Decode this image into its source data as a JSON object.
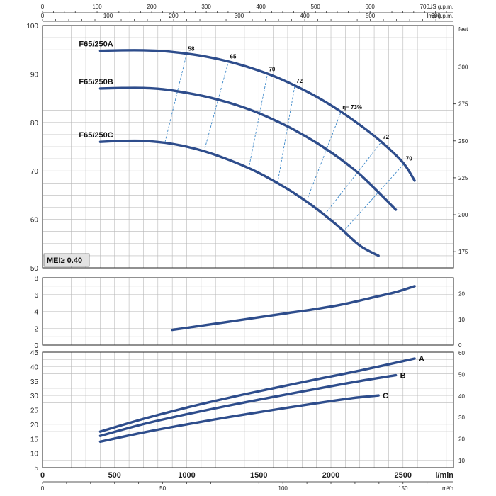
{
  "chart_data": [
    {
      "panel": "head",
      "type": "line",
      "x_units": {
        "bottom_main": "l/min",
        "bottom_secondary": "m³/h",
        "top_1": "US g.p.m.",
        "top_2": "Imp g.p.m."
      },
      "y_units": {
        "right": "feet"
      },
      "xlim": [
        0,
        2850
      ],
      "ylim": [
        50,
        100
      ],
      "y_ticks": [
        50,
        60,
        70,
        80,
        90,
        100
      ],
      "y2_ticks": [
        175,
        200,
        225,
        250,
        275,
        300
      ],
      "series": [
        {
          "name": "F65/250A",
          "x": [
            400,
            550,
            700,
            850,
            1000,
            1150,
            1300,
            1450,
            1600,
            1750,
            1900,
            2050,
            2200,
            2350,
            2500,
            2580
          ],
          "y": [
            94.8,
            94.9,
            94.9,
            94.7,
            94.2,
            93.5,
            92.5,
            91.2,
            89.6,
            87.6,
            85.3,
            82.6,
            79.5,
            76.0,
            71.7,
            68.0
          ]
        },
        {
          "name": "F65/250B",
          "x": [
            400,
            550,
            700,
            850,
            1000,
            1150,
            1300,
            1450,
            1600,
            1750,
            1900,
            2050,
            2200,
            2350,
            2450
          ],
          "y": [
            87.0,
            87.1,
            87.1,
            86.8,
            86.1,
            85.2,
            84.0,
            82.5,
            80.6,
            78.4,
            75.8,
            72.8,
            69.3,
            65.0,
            62.0
          ]
        },
        {
          "name": "F65/250C",
          "x": [
            400,
            550,
            700,
            850,
            1000,
            1150,
            1300,
            1450,
            1600,
            1750,
            1900,
            2050,
            2200,
            2330
          ],
          "y": [
            76.0,
            76.2,
            76.2,
            75.8,
            75.0,
            73.8,
            72.2,
            70.3,
            68.0,
            65.3,
            62.2,
            58.6,
            54.6,
            52.5
          ]
        }
      ],
      "efficiency_lines": [
        {
          "label": "58",
          "x": [
            850,
            1000
          ],
          "y": [
            76.0,
            94.2
          ]
        },
        {
          "label": "65",
          "x": [
            1120,
            1290
          ],
          "y": [
            74.0,
            92.6
          ]
        },
        {
          "label": "70",
          "x": [
            1430,
            1560
          ],
          "y": [
            70.5,
            90.0
          ]
        },
        {
          "label": "72",
          "x": [
            1630,
            1750
          ],
          "y": [
            67.5,
            87.6
          ]
        },
        {
          "label": "η= 73%",
          "x": [
            1840,
            2070
          ],
          "y": [
            64.5,
            82.2
          ]
        },
        {
          "label": "72",
          "x": [
            1970,
            2350
          ],
          "y": [
            61.5,
            76.0
          ]
        },
        {
          "label": "70",
          "x": [
            2100,
            2510
          ],
          "y": [
            58.0,
            71.6
          ]
        }
      ],
      "annotation": "MEI≥ 0.40"
    },
    {
      "panel": "npsh",
      "type": "line",
      "xlim": [
        0,
        2850
      ],
      "ylim": [
        0,
        8
      ],
      "y_ticks": [
        0,
        2,
        4,
        6,
        8
      ],
      "y2_ticks": [
        0,
        10,
        20
      ],
      "series": [
        {
          "name": "",
          "x": [
            900,
            1100,
            1300,
            1500,
            1700,
            1900,
            2100,
            2300,
            2450,
            2580
          ],
          "y": [
            1.8,
            2.3,
            2.8,
            3.3,
            3.8,
            4.3,
            4.9,
            5.7,
            6.3,
            7.0
          ]
        }
      ]
    },
    {
      "panel": "power",
      "type": "line",
      "xlim": [
        0,
        2850
      ],
      "ylim": [
        5,
        45
      ],
      "y_ticks": [
        5,
        10,
        15,
        20,
        25,
        30,
        35,
        40,
        45
      ],
      "y2_ticks": [
        10,
        20,
        30,
        40,
        50,
        60
      ],
      "series": [
        {
          "name": "A",
          "x": [
            400,
            700,
            1000,
            1300,
            1600,
            1900,
            2200,
            2580
          ],
          "y": [
            17.5,
            21.9,
            25.8,
            29.3,
            32.5,
            35.6,
            38.6,
            42.8
          ]
        },
        {
          "name": "B",
          "x": [
            400,
            700,
            1000,
            1300,
            1600,
            1900,
            2200,
            2450
          ],
          "y": [
            16.0,
            20.1,
            23.5,
            26.6,
            29.5,
            32.3,
            35.0,
            37.0
          ]
        },
        {
          "name": "C",
          "x": [
            400,
            700,
            1000,
            1300,
            1600,
            1900,
            2150,
            2330
          ],
          "y": [
            14.0,
            17.2,
            20.0,
            22.6,
            25.0,
            27.3,
            29.1,
            30.0
          ]
        }
      ]
    }
  ],
  "axes": {
    "bottom_lmin_ticks": [
      0,
      500,
      1000,
      1500,
      2000,
      2500
    ],
    "bottom_lmin_label": "l/min",
    "bottom_m3h_ticks": [
      0,
      50,
      100,
      150
    ],
    "bottom_m3h_label": "m³/h",
    "top_us_ticks": [
      0,
      100,
      200,
      300,
      400,
      500,
      600,
      700
    ],
    "top_us_label": "US g.p.m.",
    "top_imp_ticks": [
      0,
      100,
      200,
      300,
      400,
      500,
      600
    ],
    "top_imp_label": "Imp g.p.m.",
    "right_head_label": "feet"
  },
  "colors": {
    "curve": "#2e4d8c",
    "efficiency": "#3a86c8",
    "grid": "#b8b8b8",
    "frame": "#222222"
  }
}
